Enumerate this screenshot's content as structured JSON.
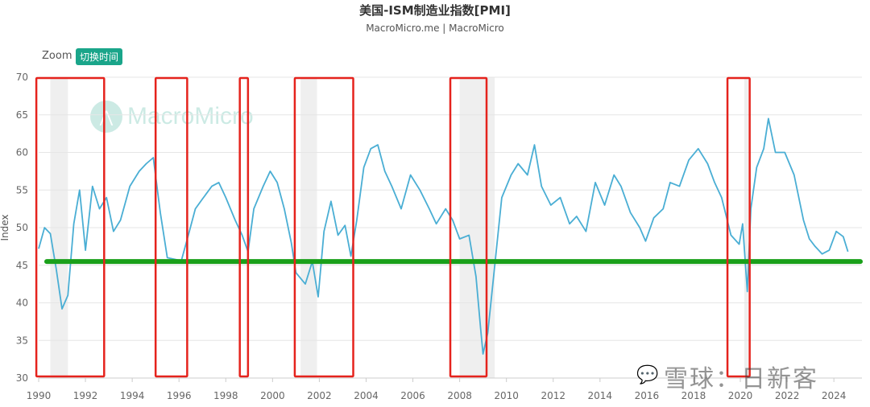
{
  "header": {
    "title": "美国-ISM制造业指数[PMI]",
    "subtitle": "MacroMicro.me | MacroMicro"
  },
  "toolbar": {
    "zoom_label": "Zoom",
    "switch_button": "切换时间"
  },
  "logo": {
    "text": "MacroMicro",
    "icon_name": "macromicro-logo-icon"
  },
  "watermark": {
    "text": "雪球：日新客",
    "icon_name": "wechat-icon"
  },
  "colors": {
    "line": "#4aaed4",
    "threshold": "#1aa01a",
    "box": "#e5231d",
    "recession": "#efefef",
    "grid": "#e6e6e6"
  },
  "chart_data": {
    "type": "line",
    "ylabel": "Index",
    "xlabel": "",
    "ylim": [
      30,
      70
    ],
    "yticks": [
      30,
      35,
      40,
      45,
      50,
      55,
      60,
      65,
      70
    ],
    "xticks": [
      "1990",
      "1992",
      "1994",
      "1996",
      "1998",
      "2000",
      "2002",
      "2004",
      "2006",
      "2008",
      "2010",
      "2012",
      "2014",
      "2016",
      "2018",
      "2020",
      "2022",
      "2024"
    ],
    "grid": true,
    "threshold": 45.5,
    "recessions": [
      [
        1990.5,
        1991.25
      ],
      [
        2001.2,
        2001.9
      ],
      [
        2008.0,
        2009.5
      ],
      [
        2020.17,
        2020.33
      ]
    ],
    "highlight_boxes": [
      [
        1989.9,
        1992.8
      ],
      [
        1995.0,
        1996.35
      ],
      [
        1998.6,
        1998.95
      ],
      [
        2000.95,
        2003.45
      ],
      [
        2007.6,
        2009.15
      ],
      [
        2019.45,
        2020.4
      ]
    ],
    "series": [
      {
        "points": [
          [
            1990.0,
            47.2
          ],
          [
            1990.25,
            50.0
          ],
          [
            1990.5,
            49.2
          ],
          [
            1990.75,
            44.5
          ],
          [
            1991.0,
            39.2
          ],
          [
            1991.25,
            41.0
          ],
          [
            1991.5,
            50.5
          ],
          [
            1991.75,
            55.0
          ],
          [
            1992.0,
            47.0
          ],
          [
            1992.3,
            55.5
          ],
          [
            1992.6,
            52.5
          ],
          [
            1992.9,
            54.0
          ],
          [
            1993.2,
            49.5
          ],
          [
            1993.5,
            51.0
          ],
          [
            1993.9,
            55.5
          ],
          [
            1994.3,
            57.5
          ],
          [
            1994.6,
            58.5
          ],
          [
            1994.9,
            59.3
          ],
          [
            1995.2,
            52.0
          ],
          [
            1995.5,
            46.0
          ],
          [
            1995.8,
            45.8
          ],
          [
            1996.1,
            45.6
          ],
          [
            1996.4,
            49.0
          ],
          [
            1996.7,
            52.5
          ],
          [
            1997.0,
            53.8
          ],
          [
            1997.4,
            55.5
          ],
          [
            1997.7,
            56.0
          ],
          [
            1998.0,
            54.0
          ],
          [
            1998.4,
            51.0
          ],
          [
            1998.7,
            49.0
          ],
          [
            1998.95,
            46.8
          ],
          [
            1999.2,
            52.5
          ],
          [
            1999.6,
            55.5
          ],
          [
            1999.9,
            57.5
          ],
          [
            2000.2,
            56.0
          ],
          [
            2000.5,
            52.5
          ],
          [
            2000.8,
            48.0
          ],
          [
            2001.0,
            44.0
          ],
          [
            2001.4,
            42.5
          ],
          [
            2001.7,
            45.5
          ],
          [
            2001.95,
            40.8
          ],
          [
            2002.2,
            49.5
          ],
          [
            2002.5,
            53.5
          ],
          [
            2002.8,
            49.0
          ],
          [
            2003.1,
            50.3
          ],
          [
            2003.35,
            46.2
          ],
          [
            2003.6,
            51.0
          ],
          [
            2003.9,
            58.0
          ],
          [
            2004.2,
            60.5
          ],
          [
            2004.5,
            61.0
          ],
          [
            2004.8,
            57.5
          ],
          [
            2005.1,
            55.5
          ],
          [
            2005.5,
            52.5
          ],
          [
            2005.9,
            57.0
          ],
          [
            2006.3,
            55.0
          ],
          [
            2006.7,
            52.5
          ],
          [
            2007.0,
            50.5
          ],
          [
            2007.4,
            52.5
          ],
          [
            2007.7,
            51.0
          ],
          [
            2008.0,
            48.5
          ],
          [
            2008.4,
            49.0
          ],
          [
            2008.7,
            43.5
          ],
          [
            2008.9,
            36.5
          ],
          [
            2009.0,
            33.2
          ],
          [
            2009.2,
            36.0
          ],
          [
            2009.5,
            45.0
          ],
          [
            2009.8,
            54.0
          ],
          [
            2010.2,
            57.0
          ],
          [
            2010.5,
            58.5
          ],
          [
            2010.9,
            57.0
          ],
          [
            2011.2,
            61.0
          ],
          [
            2011.5,
            55.5
          ],
          [
            2011.9,
            53.0
          ],
          [
            2012.3,
            54.0
          ],
          [
            2012.7,
            50.5
          ],
          [
            2013.0,
            51.5
          ],
          [
            2013.4,
            49.5
          ],
          [
            2013.8,
            56.0
          ],
          [
            2014.2,
            53.0
          ],
          [
            2014.6,
            57.0
          ],
          [
            2014.9,
            55.5
          ],
          [
            2015.3,
            52.0
          ],
          [
            2015.7,
            50.0
          ],
          [
            2015.95,
            48.2
          ],
          [
            2016.3,
            51.3
          ],
          [
            2016.7,
            52.5
          ],
          [
            2017.0,
            56.0
          ],
          [
            2017.4,
            55.5
          ],
          [
            2017.8,
            59.0
          ],
          [
            2018.2,
            60.5
          ],
          [
            2018.6,
            58.5
          ],
          [
            2018.9,
            56.0
          ],
          [
            2019.2,
            54.0
          ],
          [
            2019.6,
            49.0
          ],
          [
            2019.95,
            47.8
          ],
          [
            2020.1,
            50.5
          ],
          [
            2020.3,
            41.5
          ],
          [
            2020.45,
            52.5
          ],
          [
            2020.7,
            58.0
          ],
          [
            2021.0,
            60.5
          ],
          [
            2021.2,
            64.5
          ],
          [
            2021.5,
            60.0
          ],
          [
            2021.9,
            60.0
          ],
          [
            2022.3,
            57.0
          ],
          [
            2022.7,
            51.0
          ],
          [
            2022.95,
            48.5
          ],
          [
            2023.2,
            47.5
          ],
          [
            2023.5,
            46.5
          ],
          [
            2023.8,
            47.0
          ],
          [
            2024.1,
            49.5
          ],
          [
            2024.4,
            48.8
          ],
          [
            2024.6,
            46.8
          ]
        ]
      }
    ]
  }
}
